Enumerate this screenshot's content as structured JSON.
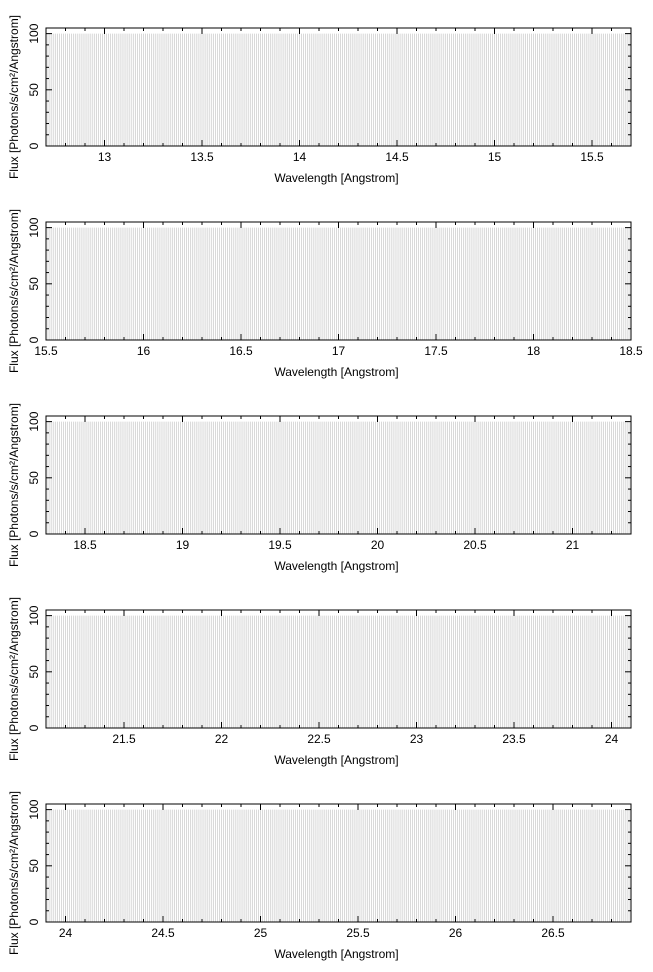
{
  "chart_data": [
    {
      "type": "bar",
      "xlabel": "Wavelength [Angstrom]",
      "ylabel": "Flux [Photons/s/cm²/Angstrom]",
      "xlim": [
        12.7,
        15.7
      ],
      "ylim": [
        0,
        105
      ],
      "xticks": [
        "13",
        "13.5",
        "14",
        "14.5",
        "15",
        "15.5"
      ],
      "yticks": [
        "0",
        "50",
        "100"
      ],
      "line_height": 100,
      "line_step": 0.01,
      "line_color": "#c0c0c0"
    },
    {
      "type": "bar",
      "xlabel": "Wavelength [Angstrom]",
      "ylabel": "Flux [Photons/s/cm²/Angstrom]",
      "xlim": [
        15.5,
        18.5
      ],
      "ylim": [
        0,
        105
      ],
      "xticks": [
        "15.5",
        "16",
        "16.5",
        "17",
        "17.5",
        "18",
        "18.5"
      ],
      "yticks": [
        "0",
        "50",
        "100"
      ],
      "line_height": 100,
      "line_step": 0.01,
      "line_color": "#c0c0c0"
    },
    {
      "type": "bar",
      "xlabel": "Wavelength [Angstrom]",
      "ylabel": "Flux [Photons/s/cm²/Angstrom]",
      "xlim": [
        18.3,
        21.3
      ],
      "ylim": [
        0,
        105
      ],
      "xticks": [
        "18.5",
        "19",
        "19.5",
        "20",
        "20.5",
        "21"
      ],
      "yticks": [
        "0",
        "50",
        "100"
      ],
      "line_height": 100,
      "line_step": 0.01,
      "line_color": "#c0c0c0"
    },
    {
      "type": "bar",
      "xlabel": "Wavelength [Angstrom]",
      "ylabel": "Flux [Photons/s/cm²/Angstrom]",
      "xlim": [
        21.1,
        24.1
      ],
      "ylim": [
        0,
        105
      ],
      "xticks": [
        "21.5",
        "22",
        "22.5",
        "23",
        "23.5",
        "24"
      ],
      "yticks": [
        "0",
        "50",
        "100"
      ],
      "line_height": 100,
      "line_step": 0.01,
      "line_color": "#c0c0c0"
    },
    {
      "type": "bar",
      "xlabel": "Wavelength [Angstrom]",
      "ylabel": "Flux [Photons/s/cm²/Angstrom]",
      "xlim": [
        23.9,
        26.9
      ],
      "ylim": [
        0,
        105
      ],
      "xticks": [
        "24",
        "24.5",
        "25",
        "25.5",
        "26",
        "26.5"
      ],
      "yticks": [
        "0",
        "50",
        "100"
      ],
      "line_height": 100,
      "line_step": 0.01,
      "line_color": "#c0c0c0"
    }
  ]
}
